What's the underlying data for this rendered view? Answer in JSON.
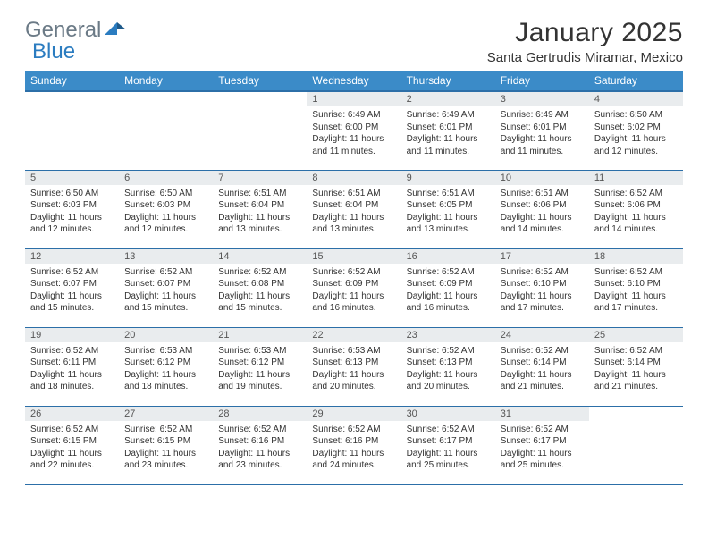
{
  "brand": {
    "part1": "General",
    "part2": "Blue"
  },
  "title": "January 2025",
  "location": "Santa Gertrudis Miramar, Mexico",
  "colors": {
    "header_bg": "#3b8bc8",
    "header_text": "#ffffff",
    "daynum_bg": "#e9ecee",
    "row_border": "#2c6fa8",
    "logo_gray": "#6b7a86",
    "logo_blue": "#2b7cc0",
    "body_text": "#333333",
    "background": "#ffffff"
  },
  "typography": {
    "title_fontsize": 30,
    "location_fontsize": 15,
    "th_fontsize": 12,
    "daynum_fontsize": 11,
    "daytext_fontsize": 10
  },
  "weekdays": [
    "Sunday",
    "Monday",
    "Tuesday",
    "Wednesday",
    "Thursday",
    "Friday",
    "Saturday"
  ],
  "weeks": [
    [
      null,
      null,
      null,
      {
        "n": "1",
        "sunrise": "6:49 AM",
        "sunset": "6:00 PM",
        "dh": "11",
        "dm": "11"
      },
      {
        "n": "2",
        "sunrise": "6:49 AM",
        "sunset": "6:01 PM",
        "dh": "11",
        "dm": "11"
      },
      {
        "n": "3",
        "sunrise": "6:49 AM",
        "sunset": "6:01 PM",
        "dh": "11",
        "dm": "11"
      },
      {
        "n": "4",
        "sunrise": "6:50 AM",
        "sunset": "6:02 PM",
        "dh": "11",
        "dm": "12"
      }
    ],
    [
      {
        "n": "5",
        "sunrise": "6:50 AM",
        "sunset": "6:03 PM",
        "dh": "11",
        "dm": "12"
      },
      {
        "n": "6",
        "sunrise": "6:50 AM",
        "sunset": "6:03 PM",
        "dh": "11",
        "dm": "12"
      },
      {
        "n": "7",
        "sunrise": "6:51 AM",
        "sunset": "6:04 PM",
        "dh": "11",
        "dm": "13"
      },
      {
        "n": "8",
        "sunrise": "6:51 AM",
        "sunset": "6:04 PM",
        "dh": "11",
        "dm": "13"
      },
      {
        "n": "9",
        "sunrise": "6:51 AM",
        "sunset": "6:05 PM",
        "dh": "11",
        "dm": "13"
      },
      {
        "n": "10",
        "sunrise": "6:51 AM",
        "sunset": "6:06 PM",
        "dh": "11",
        "dm": "14"
      },
      {
        "n": "11",
        "sunrise": "6:52 AM",
        "sunset": "6:06 PM",
        "dh": "11",
        "dm": "14"
      }
    ],
    [
      {
        "n": "12",
        "sunrise": "6:52 AM",
        "sunset": "6:07 PM",
        "dh": "11",
        "dm": "15"
      },
      {
        "n": "13",
        "sunrise": "6:52 AM",
        "sunset": "6:07 PM",
        "dh": "11",
        "dm": "15"
      },
      {
        "n": "14",
        "sunrise": "6:52 AM",
        "sunset": "6:08 PM",
        "dh": "11",
        "dm": "15"
      },
      {
        "n": "15",
        "sunrise": "6:52 AM",
        "sunset": "6:09 PM",
        "dh": "11",
        "dm": "16"
      },
      {
        "n": "16",
        "sunrise": "6:52 AM",
        "sunset": "6:09 PM",
        "dh": "11",
        "dm": "16"
      },
      {
        "n": "17",
        "sunrise": "6:52 AM",
        "sunset": "6:10 PM",
        "dh": "11",
        "dm": "17"
      },
      {
        "n": "18",
        "sunrise": "6:52 AM",
        "sunset": "6:10 PM",
        "dh": "11",
        "dm": "17"
      }
    ],
    [
      {
        "n": "19",
        "sunrise": "6:52 AM",
        "sunset": "6:11 PM",
        "dh": "11",
        "dm": "18"
      },
      {
        "n": "20",
        "sunrise": "6:53 AM",
        "sunset": "6:12 PM",
        "dh": "11",
        "dm": "18"
      },
      {
        "n": "21",
        "sunrise": "6:53 AM",
        "sunset": "6:12 PM",
        "dh": "11",
        "dm": "19"
      },
      {
        "n": "22",
        "sunrise": "6:53 AM",
        "sunset": "6:13 PM",
        "dh": "11",
        "dm": "20"
      },
      {
        "n": "23",
        "sunrise": "6:52 AM",
        "sunset": "6:13 PM",
        "dh": "11",
        "dm": "20"
      },
      {
        "n": "24",
        "sunrise": "6:52 AM",
        "sunset": "6:14 PM",
        "dh": "11",
        "dm": "21"
      },
      {
        "n": "25",
        "sunrise": "6:52 AM",
        "sunset": "6:14 PM",
        "dh": "11",
        "dm": "21"
      }
    ],
    [
      {
        "n": "26",
        "sunrise": "6:52 AM",
        "sunset": "6:15 PM",
        "dh": "11",
        "dm": "22"
      },
      {
        "n": "27",
        "sunrise": "6:52 AM",
        "sunset": "6:15 PM",
        "dh": "11",
        "dm": "23"
      },
      {
        "n": "28",
        "sunrise": "6:52 AM",
        "sunset": "6:16 PM",
        "dh": "11",
        "dm": "23"
      },
      {
        "n": "29",
        "sunrise": "6:52 AM",
        "sunset": "6:16 PM",
        "dh": "11",
        "dm": "24"
      },
      {
        "n": "30",
        "sunrise": "6:52 AM",
        "sunset": "6:17 PM",
        "dh": "11",
        "dm": "25"
      },
      {
        "n": "31",
        "sunrise": "6:52 AM",
        "sunset": "6:17 PM",
        "dh": "11",
        "dm": "25"
      },
      null
    ]
  ],
  "labels": {
    "sunrise": "Sunrise:",
    "sunset": "Sunset:",
    "daylight": "Daylight:",
    "hours": "hours",
    "and": "and",
    "minutes": "minutes."
  }
}
